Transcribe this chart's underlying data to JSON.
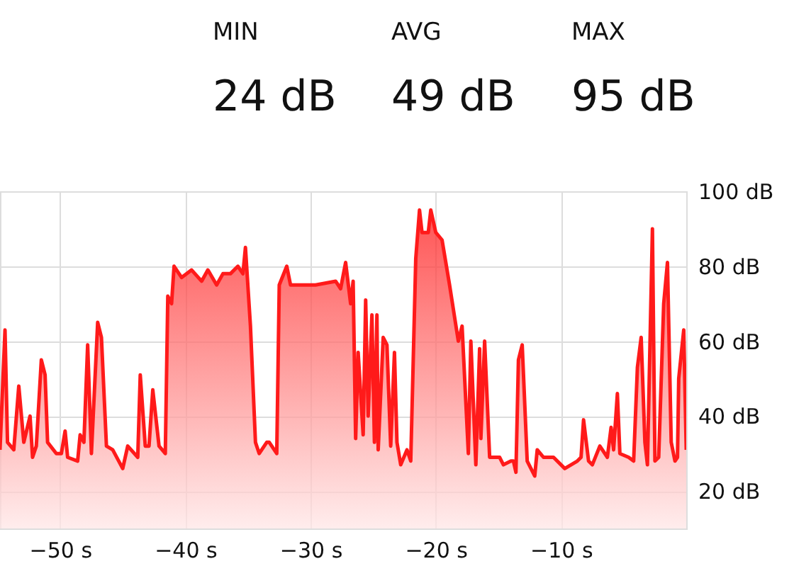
{
  "chart_data": {
    "type": "area",
    "annotations": [
      "MIN",
      "24 dB",
      "AVG",
      "49 dB",
      "MAX",
      "95 dB"
    ],
    "x": [
      -54.8,
      -54.4,
      -54.2,
      -53.7,
      -53.3,
      -52.9,
      -52.4,
      -52.2,
      -51.9,
      -51.5,
      -51.2,
      -51.0,
      -50.3,
      -49.9,
      -49.6,
      -49.4,
      -48.6,
      -48.4,
      -48.1,
      -47.8,
      -47.5,
      -47.0,
      -46.7,
      -46.3,
      -45.8,
      -45.0,
      -44.6,
      -43.8,
      -43.6,
      -43.2,
      -42.9,
      -42.6,
      -42.1,
      -41.6,
      -41.4,
      -41.1,
      -40.9,
      -40.3,
      -39.5,
      -38.7,
      -38.2,
      -37.5,
      -37.0,
      -36.4,
      -35.8,
      -35.4,
      -35.2,
      -34.8,
      -34.4,
      -34.1,
      -33.5,
      -33.3,
      -32.7,
      -32.5,
      -31.9,
      -31.6,
      -30.7,
      -29.6,
      -28.0,
      -27.6,
      -27.2,
      -26.8,
      -26.6,
      -26.4,
      -26.2,
      -25.8,
      -25.6,
      -25.4,
      -25.1,
      -24.9,
      -24.7,
      -24.6,
      -24.2,
      -23.9,
      -23.6,
      -23.3,
      -23.1,
      -22.8,
      -22.3,
      -22.0,
      -21.6,
      -21.3,
      -21.1,
      -20.6,
      -20.4,
      -20.0,
      -19.5,
      -18.9,
      -18.2,
      -17.9,
      -17.4,
      -17.2,
      -16.8,
      -16.5,
      -16.4,
      -16.1,
      -15.7,
      -14.9,
      -14.6,
      -14.0,
      -13.8,
      -13.6,
      -13.4,
      -13.1,
      -12.7,
      -12.1,
      -11.9,
      -11.4,
      -10.6,
      -9.7,
      -8.7,
      -8.4,
      -8.2,
      -7.8,
      -7.5,
      -6.9,
      -6.3,
      -6.0,
      -5.8,
      -5.5,
      -5.3,
      -4.6,
      -4.2,
      -3.9,
      -3.6,
      -3.3,
      -3.1,
      -2.7,
      -2.5,
      -2.2,
      -1.8,
      -1.5,
      -1.2,
      -0.9,
      -0.7,
      -0.6,
      -0.2,
      0
    ],
    "series": [
      {
        "color": "#ff1a1a",
        "values": [
          31,
          63,
          33,
          31,
          48,
          33,
          40,
          29,
          32,
          55,
          51,
          33,
          30,
          30,
          36,
          29,
          28,
          35,
          33,
          59,
          30,
          65,
          61,
          32,
          31,
          26,
          32,
          29,
          51,
          32,
          32,
          47,
          32,
          30,
          72,
          70,
          80,
          77,
          79,
          76,
          79,
          75,
          78,
          78,
          80,
          78,
          85,
          64,
          33,
          30,
          33,
          33,
          30,
          75,
          80,
          75,
          75,
          75,
          76,
          74,
          81,
          70,
          76,
          34,
          57,
          35,
          71,
          40,
          67,
          33,
          67,
          31,
          61,
          59,
          32,
          57,
          33,
          27,
          31,
          28,
          82,
          95,
          89,
          89,
          95,
          89,
          87,
          75,
          60,
          64,
          30,
          60,
          27,
          58,
          34,
          60,
          29,
          29,
          27,
          28,
          28,
          25,
          55,
          59,
          28,
          24,
          31,
          29,
          29,
          26,
          28,
          29,
          39,
          28,
          27,
          32,
          29,
          37,
          31,
          46,
          30,
          29,
          28,
          53,
          61,
          33,
          27,
          90,
          28,
          29,
          70,
          81,
          33,
          28,
          29,
          50,
          63,
          31
        ]
      }
    ],
    "xlim": [
      -54.8,
      0
    ],
    "ylim": [
      10,
      100
    ],
    "xticks": [
      {
        "value": -50,
        "label": "−50 s"
      },
      {
        "value": -40,
        "label": "−40 s"
      },
      {
        "value": -30,
        "label": "−30 s"
      },
      {
        "value": -20,
        "label": "−20 s"
      },
      {
        "value": -10,
        "label": "−10 s"
      }
    ],
    "yticks": [
      {
        "value": 20,
        "label": "20 dB"
      },
      {
        "value": 40,
        "label": "40 dB"
      },
      {
        "value": 60,
        "label": "60 dB"
      },
      {
        "value": 80,
        "label": "80 dB"
      },
      {
        "value": 100,
        "label": "100 dB"
      }
    ],
    "grid": true
  }
}
